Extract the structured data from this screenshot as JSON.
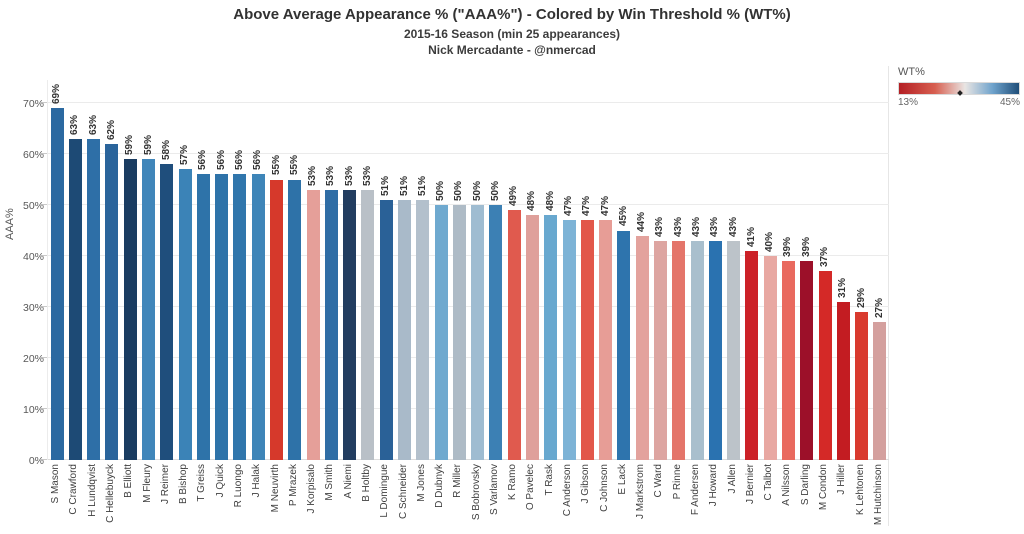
{
  "header": {
    "title": "Above Average Appearance % (\"AAA%\") - Colored by Win Threshold % (WT%)",
    "subtitle": "2015-16 Season (min 25 appearances)",
    "byline": "Nick Mercadante - @nmercad"
  },
  "legend": {
    "title": "WT%",
    "min_label": "13%",
    "max_label": "45%",
    "marker_pos_pct": 51,
    "gradient_stops": [
      "#b41f24 0%",
      "#d75f50 30%",
      "#e9e5e3 55%",
      "#6fa3cc 78%",
      "#1f4e79 100%"
    ]
  },
  "chart_data": {
    "type": "bar",
    "title": "Above Average Appearance % (\"AAA%\") - Colored by Win Threshold % (WT%)",
    "subtitle": "2015-16 Season (min 25 appearances)",
    "ylabel": "AAA%",
    "xlabel": "",
    "ylim": [
      0,
      74.5
    ],
    "grid": true,
    "legend_position": "top-right",
    "color_encoding": "bar color = WT% on red(13%)-to-blue(45%) diverging scale",
    "yticks": [
      "0%",
      "10%",
      "20%",
      "30%",
      "40%",
      "50%",
      "60%",
      "70%"
    ],
    "categories": [
      "S Mason",
      "C Crawford",
      "H Lundqvist",
      "C Hellebuyck",
      "B Elliott",
      "M Fleury",
      "J Reimer",
      "B Bishop",
      "T Greiss",
      "J Quick",
      "R Luongo",
      "J Halak",
      "M Neuvirth",
      "P Mrazek",
      "J Korpisalo",
      "M Smith",
      "A Niemi",
      "B Holtby",
      "L Domingue",
      "C Schneider",
      "M Jones",
      "D Dubnyk",
      "R Miller",
      "S Bobrovsky",
      "S Varlamov",
      "K Ramo",
      "O Pavelec",
      "T Rask",
      "C Anderson",
      "J Gibson",
      "C Johnson",
      "E Lack",
      "J Markstrom",
      "C Ward",
      "P Rinne",
      "F Andersen",
      "J Howard",
      "J Allen",
      "J Bernier",
      "C Talbot",
      "A Nilsson",
      "S Darling",
      "M Condon",
      "J Hiller",
      "K Lehtonen",
      "M Hutchinson"
    ],
    "values": [
      69,
      63,
      63,
      62,
      59,
      59,
      58,
      57,
      56,
      56,
      56,
      56,
      55,
      55,
      53,
      53,
      53,
      53,
      51,
      51,
      51,
      50,
      50,
      50,
      50,
      49,
      48,
      48,
      47,
      47,
      47,
      45,
      44,
      43,
      43,
      43,
      43,
      43,
      41,
      40,
      39,
      39,
      37,
      31,
      29,
      27
    ],
    "value_labels": [
      "69%",
      "63%",
      "63%",
      "62%",
      "59%",
      "59%",
      "58%",
      "57%",
      "56%",
      "56%",
      "56%",
      "56%",
      "55%",
      "55%",
      "53%",
      "53%",
      "53%",
      "53%",
      "51%",
      "51%",
      "51%",
      "50%",
      "50%",
      "50%",
      "50%",
      "49%",
      "48%",
      "48%",
      "47%",
      "47%",
      "47%",
      "45%",
      "44%",
      "43%",
      "43%",
      "43%",
      "43%",
      "43%",
      "41%",
      "40%",
      "39%",
      "39%",
      "37%",
      "31%",
      "29%",
      "27%"
    ],
    "bar_colors": [
      "#2b69a1",
      "#1d4a75",
      "#2e6fa7",
      "#2a649b",
      "#1a3c61",
      "#4086ba",
      "#1f4e7c",
      "#3b83b7",
      "#2e73a9",
      "#2e73a9",
      "#3076ac",
      "#3e85b8",
      "#d6392b",
      "#2e72a8",
      "#e59f99",
      "#2f6da5",
      "#223d60",
      "#b9c0c7",
      "#2a6197",
      "#a9bac9",
      "#b3c0cc",
      "#6fa9cf",
      "#aebbc6",
      "#9fbcd1",
      "#3c80b4",
      "#e05a4e",
      "#dfa09b",
      "#68a8cf",
      "#7db3d6",
      "#e2574a",
      "#e79d96",
      "#2e74ad",
      "#e3a29d",
      "#dda5a1",
      "#e4756a",
      "#a9bfcd",
      "#2a72b0",
      "#bcc3c9",
      "#cc2127",
      "#e8a8a2",
      "#e96a5f",
      "#9c1029",
      "#d42927",
      "#c31c22",
      "#d93a2e",
      "#d4a09e"
    ]
  }
}
